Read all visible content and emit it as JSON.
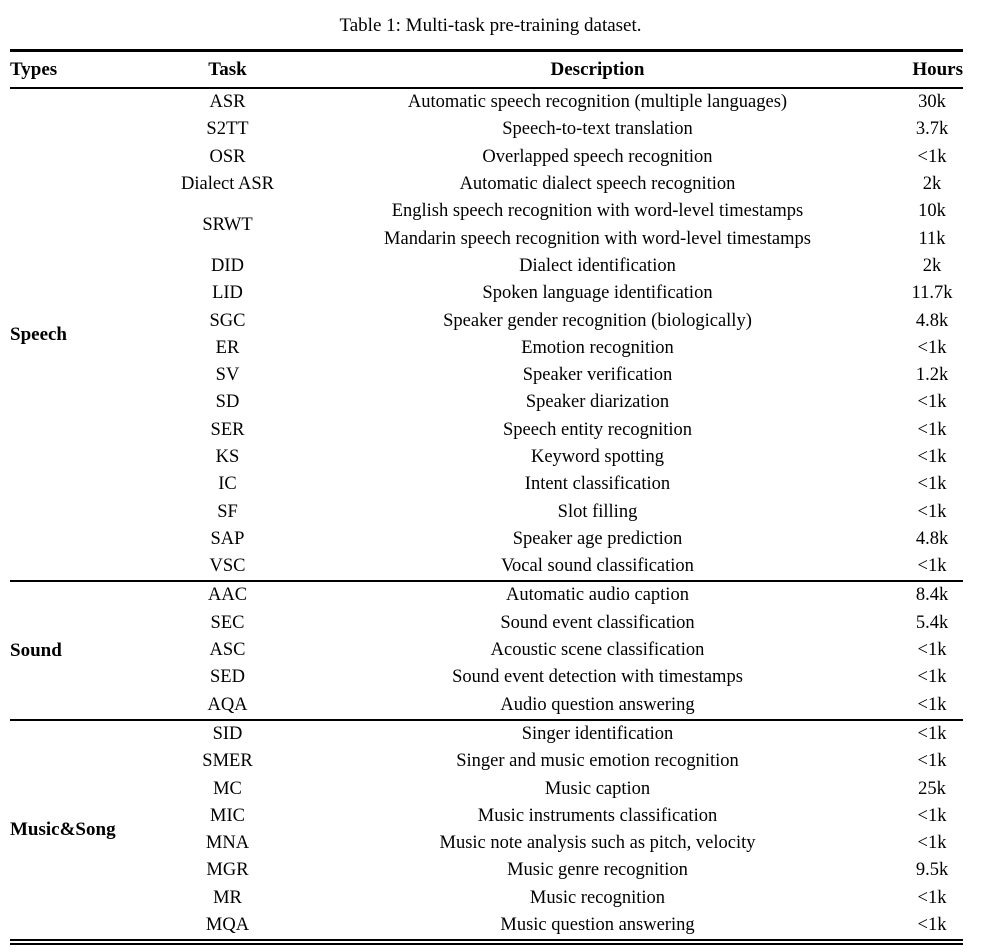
{
  "caption": "Table 1: Multi-task pre-training dataset.",
  "columns": {
    "types": "Types",
    "task": "Task",
    "description": "Description",
    "hours": "Hours"
  },
  "sections": [
    {
      "type": "Speech",
      "rows": [
        {
          "task": "ASR",
          "desc": "Automatic speech recognition (multiple languages)",
          "hours": "30k"
        },
        {
          "task": "S2TT",
          "desc": "Speech-to-text translation",
          "hours": "3.7k"
        },
        {
          "task": "OSR",
          "desc": "Overlapped speech recognition",
          "hours": "<1k"
        },
        {
          "task": "Dialect ASR",
          "desc": "Automatic dialect speech recognition",
          "hours": "2k"
        },
        {
          "task": "SRWT",
          "task_rowspan": 2,
          "desc": "English speech recognition with word-level timestamps",
          "hours": "10k"
        },
        {
          "task": null,
          "desc": "Mandarin speech recognition with word-level timestamps",
          "hours": "11k"
        },
        {
          "task": "DID",
          "desc": "Dialect identification",
          "hours": "2k"
        },
        {
          "task": "LID",
          "desc": "Spoken language identification",
          "hours": "11.7k"
        },
        {
          "task": "SGC",
          "desc": "Speaker gender recognition (biologically)",
          "hours": "4.8k"
        },
        {
          "task": "ER",
          "desc": "Emotion recognition",
          "hours": "<1k"
        },
        {
          "task": "SV",
          "desc": "Speaker verification",
          "hours": "1.2k"
        },
        {
          "task": "SD",
          "desc": "Speaker diarization",
          "hours": "<1k"
        },
        {
          "task": "SER",
          "desc": "Speech entity recognition",
          "hours": "<1k"
        },
        {
          "task": "KS",
          "desc": "Keyword spotting",
          "hours": "<1k"
        },
        {
          "task": "IC",
          "desc": "Intent classification",
          "hours": "<1k"
        },
        {
          "task": "SF",
          "desc": "Slot filling",
          "hours": "<1k"
        },
        {
          "task": "SAP",
          "desc": "Speaker age prediction",
          "hours": "4.8k"
        },
        {
          "task": "VSC",
          "desc": "Vocal sound classification",
          "hours": "<1k"
        }
      ]
    },
    {
      "type": "Sound",
      "rows": [
        {
          "task": "AAC",
          "desc": "Automatic audio caption",
          "hours": "8.4k"
        },
        {
          "task": "SEC",
          "desc": "Sound event classification",
          "hours": "5.4k"
        },
        {
          "task": "ASC",
          "desc": "Acoustic scene classification",
          "hours": "<1k"
        },
        {
          "task": "SED",
          "desc": "Sound event detection with timestamps",
          "hours": "<1k"
        },
        {
          "task": "AQA",
          "desc": "Audio question answering",
          "hours": "<1k"
        }
      ]
    },
    {
      "type": "Music&Song",
      "rows": [
        {
          "task": "SID",
          "desc": "Singer identification",
          "hours": "<1k"
        },
        {
          "task": "SMER",
          "desc": "Singer and music emotion recognition",
          "hours": "<1k"
        },
        {
          "task": "MC",
          "desc": "Music caption",
          "hours": "25k"
        },
        {
          "task": "MIC",
          "desc": "Music instruments classification",
          "hours": "<1k"
        },
        {
          "task": "MNA",
          "desc": "Music note analysis such as pitch, velocity",
          "hours": "<1k"
        },
        {
          "task": "MGR",
          "desc": "Music genre recognition",
          "hours": "9.5k"
        },
        {
          "task": "MR",
          "desc": "Music recognition",
          "hours": "<1k"
        },
        {
          "task": "MQA",
          "desc": "Music question answering",
          "hours": "<1k"
        }
      ]
    }
  ]
}
